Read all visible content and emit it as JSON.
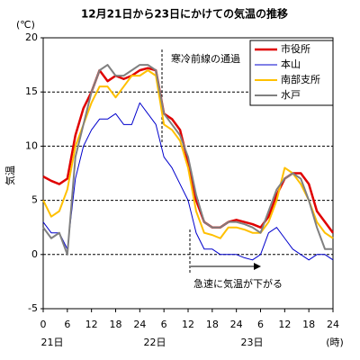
{
  "chart_data": {
    "type": "line",
    "title": "12月21日から23日にかけての気温の推移",
    "y_unit": "(℃)",
    "y_label": "気温",
    "x_unit": "(時)",
    "day_labels": [
      "21日",
      "22日",
      "23日"
    ],
    "annotations": [
      "寒冷前線の通過",
      "急速に気温が下がる"
    ],
    "x": [
      0,
      2,
      4,
      6,
      8,
      10,
      12,
      14,
      16,
      18,
      20,
      22,
      24,
      26,
      28,
      30,
      32,
      34,
      36,
      38,
      40,
      42,
      44,
      46,
      48,
      50,
      52,
      54,
      56,
      58,
      60,
      62,
      64,
      66,
      68,
      70,
      72
    ],
    "series": [
      {
        "name": "市役所",
        "color": "#e00000",
        "width": 2.5,
        "values": [
          7.2,
          6.8,
          6.5,
          7,
          11,
          13.5,
          15,
          17,
          16,
          16.5,
          16.2,
          16.5,
          17,
          17.2,
          17,
          13,
          12.5,
          11.5,
          8.5,
          5,
          3,
          2.5,
          2.5,
          3,
          3.2,
          3,
          2.8,
          2.5,
          3.5,
          5.5,
          7,
          7.5,
          7.5,
          6.5,
          4,
          3,
          2
        ]
      },
      {
        "name": "本山",
        "color": "#0000cc",
        "width": 1,
        "values": [
          3,
          2,
          2,
          0.5,
          7,
          10,
          11.5,
          12.5,
          12.5,
          13,
          12,
          12,
          14,
          13,
          12,
          9,
          8,
          6.5,
          5,
          2,
          0.5,
          0.5,
          0,
          0,
          0,
          -0.3,
          -0.5,
          0,
          2,
          2.5,
          1.5,
          0.5,
          0,
          -0.5,
          0,
          0,
          -0.5
        ]
      },
      {
        "name": "南部支所",
        "color": "#ffc000",
        "width": 2,
        "values": [
          5,
          3.5,
          4,
          6,
          10,
          12,
          14,
          15.5,
          15.5,
          14.5,
          15.5,
          16.5,
          16.5,
          17,
          16.5,
          12,
          11.5,
          10.5,
          8,
          4,
          2,
          1.8,
          1.5,
          2.5,
          2.5,
          2.3,
          2,
          2,
          3,
          5,
          8,
          7.5,
          6.5,
          5,
          3,
          2,
          1.5
        ]
      },
      {
        "name": "水戸",
        "color": "#808080",
        "width": 2,
        "values": [
          2.5,
          1.5,
          2,
          0,
          9,
          12,
          15,
          17,
          17.5,
          16.5,
          16.5,
          17,
          17.5,
          17.5,
          17,
          13,
          12,
          11,
          9,
          5.5,
          3,
          2.5,
          2.5,
          3,
          3,
          2.8,
          2.5,
          2,
          4,
          6,
          7,
          7.5,
          7,
          5,
          2.5,
          0.5,
          0.5
        ]
      }
    ],
    "xlim": [
      0,
      72
    ],
    "xticks": [
      0,
      6,
      12,
      18,
      24,
      {
        "value": 30,
        "label": "6"
      },
      {
        "value": 36,
        "label": "12"
      },
      {
        "value": 42,
        "label": "18"
      },
      {
        "value": 48,
        "label": "24"
      },
      {
        "value": 54,
        "label": "6"
      },
      {
        "value": 60,
        "label": "12"
      },
      {
        "value": 66,
        "label": "18"
      },
      {
        "value": 72,
        "label": "24"
      }
    ],
    "ylim": [
      -5,
      20
    ],
    "yticks": [
      20,
      15,
      10,
      5,
      0,
      -5
    ],
    "grid": true
  }
}
